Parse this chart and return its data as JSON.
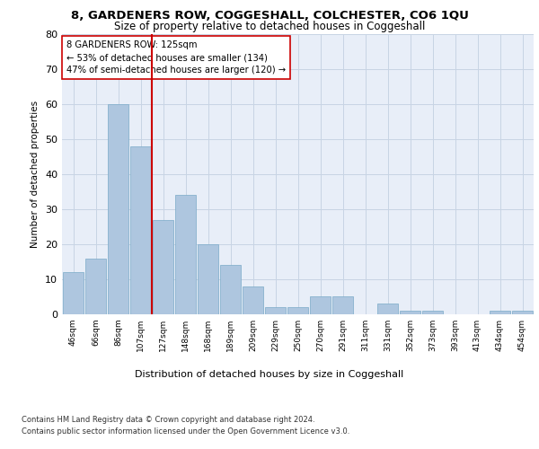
{
  "title": "8, GARDENERS ROW, COGGESHALL, COLCHESTER, CO6 1QU",
  "subtitle": "Size of property relative to detached houses in Coggeshall",
  "xlabel": "Distribution of detached houses by size in Coggeshall",
  "ylabel": "Number of detached properties",
  "categories": [
    "46sqm",
    "66sqm",
    "86sqm",
    "107sqm",
    "127sqm",
    "148sqm",
    "168sqm",
    "189sqm",
    "209sqm",
    "229sqm",
    "250sqm",
    "270sqm",
    "291sqm",
    "311sqm",
    "331sqm",
    "352sqm",
    "373sqm",
    "393sqm",
    "413sqm",
    "434sqm",
    "454sqm"
  ],
  "values": [
    12,
    16,
    60,
    48,
    27,
    34,
    20,
    14,
    8,
    2,
    2,
    5,
    5,
    0,
    3,
    1,
    1,
    0,
    0,
    1,
    1
  ],
  "bar_color": "#aec6df",
  "bar_edge_color": "#7aaac8",
  "reference_line_x": 3.5,
  "annotation_text": "8 GARDENERS ROW: 125sqm\n← 53% of detached houses are smaller (134)\n47% of semi-detached houses are larger (120) →",
  "annotation_box_color": "#ffffff",
  "annotation_box_edge_color": "#cc0000",
  "reference_line_color": "#cc0000",
  "grid_color": "#c8d4e4",
  "background_color": "#e8eef8",
  "footer_line1": "Contains HM Land Registry data © Crown copyright and database right 2024.",
  "footer_line2": "Contains public sector information licensed under the Open Government Licence v3.0.",
  "ylim": [
    0,
    80
  ],
  "yticks": [
    0,
    10,
    20,
    30,
    40,
    50,
    60,
    70,
    80
  ],
  "title_fontsize": 9.5,
  "subtitle_fontsize": 8.5
}
